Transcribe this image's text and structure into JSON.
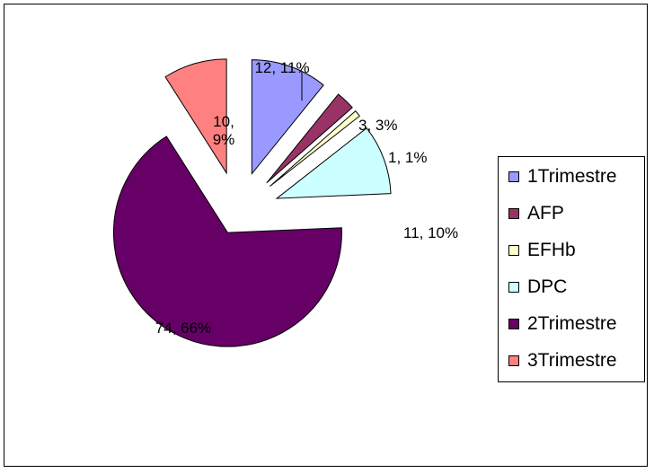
{
  "chart_data": {
    "type": "pie",
    "exploded": true,
    "slices": [
      {
        "name": "1Trimestre",
        "value": 12,
        "percent": "11%",
        "label": "12, 11%",
        "color": "#9999FF"
      },
      {
        "name": "AFP",
        "value": 3,
        "percent": "3%",
        "label": "3, 3%",
        "color": "#993366"
      },
      {
        "name": "EFHb",
        "value": 1,
        "percent": "1%",
        "label": "1, 1%",
        "color": "#FFFFCC"
      },
      {
        "name": "DPC",
        "value": 11,
        "percent": "10%",
        "label": "11, 10%",
        "color": "#CCFFFF"
      },
      {
        "name": "2Trimestre",
        "value": 74,
        "percent": "66%",
        "label": "74, 66%",
        "color": "#660066"
      },
      {
        "name": "3Trimestre",
        "value": 10,
        "percent": "9%",
        "label": "10,\n9%",
        "color": "#FF8080"
      }
    ],
    "legend_position": "right"
  }
}
